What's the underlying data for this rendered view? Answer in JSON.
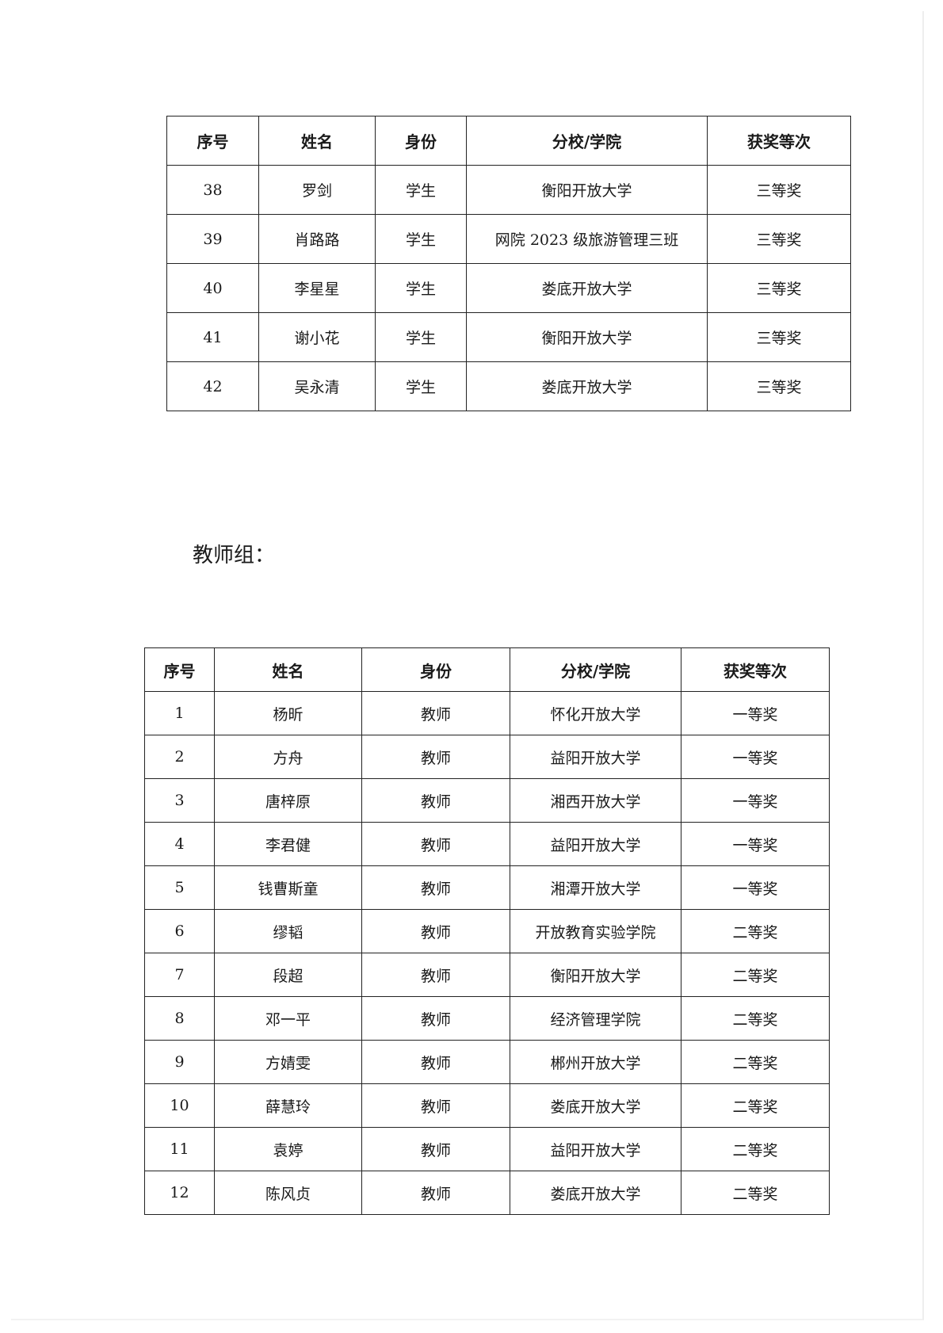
{
  "columns": [
    "序号",
    "姓名",
    "身份",
    "分校/学院",
    "获奖等次"
  ],
  "student_table": {
    "rows": [
      [
        "38",
        "罗剑",
        "学生",
        "衡阳开放大学",
        "三等奖"
      ],
      [
        "39",
        "肖路路",
        "学生",
        "网院 2023 级旅游管理三班",
        "三等奖"
      ],
      [
        "40",
        "李星星",
        "学生",
        "娄底开放大学",
        "三等奖"
      ],
      [
        "41",
        "谢小花",
        "学生",
        "衡阳开放大学",
        "三等奖"
      ],
      [
        "42",
        "吴永清",
        "学生",
        "娄底开放大学",
        "三等奖"
      ]
    ]
  },
  "teacher_section": {
    "heading": "教师组：",
    "rows": [
      [
        "1",
        "杨昕",
        "教师",
        "怀化开放大学",
        "一等奖"
      ],
      [
        "2",
        "方舟",
        "教师",
        "益阳开放大学",
        "一等奖"
      ],
      [
        "3",
        "唐梓原",
        "教师",
        "湘西开放大学",
        "一等奖"
      ],
      [
        "4",
        "李君健",
        "教师",
        "益阳开放大学",
        "一等奖"
      ],
      [
        "5",
        "钱曹斯童",
        "教师",
        "湘潭开放大学",
        "一等奖"
      ],
      [
        "6",
        "缪韬",
        "教师",
        "开放教育实验学院",
        "二等奖"
      ],
      [
        "7",
        "段超",
        "教师",
        "衡阳开放大学",
        "二等奖"
      ],
      [
        "8",
        "邓一平",
        "教师",
        "经济管理学院",
        "二等奖"
      ],
      [
        "9",
        "方婧雯",
        "教师",
        "郴州开放大学",
        "二等奖"
      ],
      [
        "10",
        "薛慧玲",
        "教师",
        "娄底开放大学",
        "二等奖"
      ],
      [
        "11",
        "袁婷",
        "教师",
        "益阳开放大学",
        "二等奖"
      ],
      [
        "12",
        "陈风贞",
        "教师",
        "娄底开放大学",
        "二等奖"
      ]
    ]
  }
}
